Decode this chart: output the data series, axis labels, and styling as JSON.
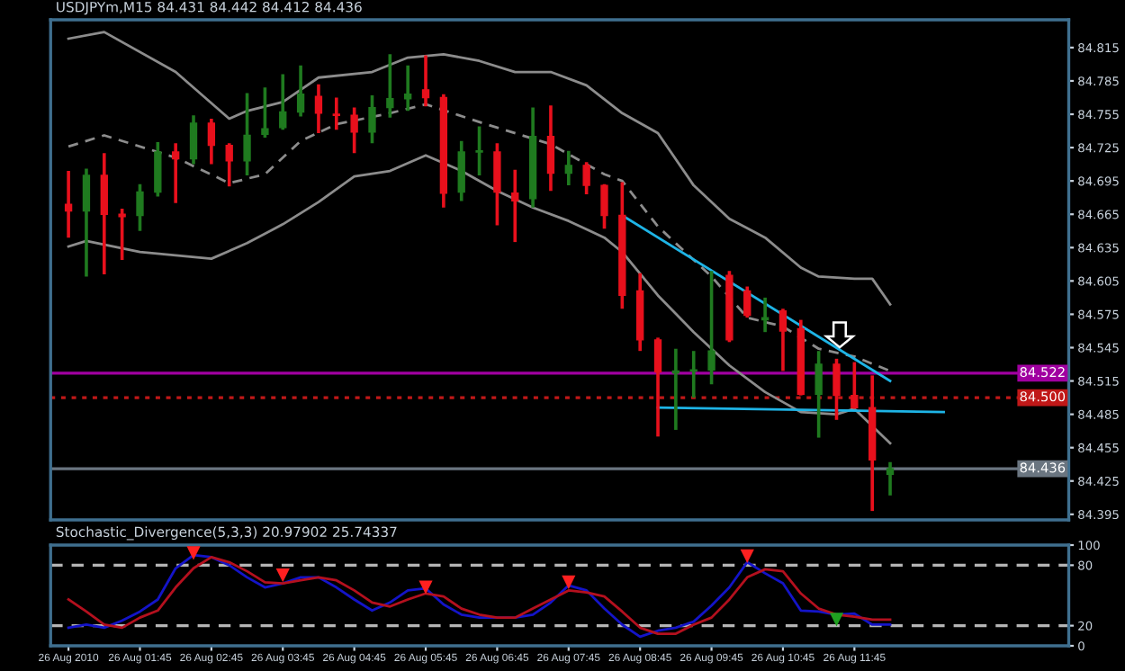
{
  "chart_data": [
    {
      "type": "candlestick",
      "title": "USDJPYm,M15 84.431 84.442 84.412 84.436",
      "x": [
        "2010-08-26T00:45",
        "2010-08-26T01:00",
        "2010-08-26T01:15",
        "2010-08-26T01:30",
        "2010-08-26T01:45",
        "2010-08-26T02:00",
        "2010-08-26T02:15",
        "2010-08-26T02:30",
        "2010-08-26T02:45",
        "2010-08-26T03:00",
        "2010-08-26T03:15",
        "2010-08-26T03:30",
        "2010-08-26T03:45",
        "2010-08-26T04:00",
        "2010-08-26T04:15",
        "2010-08-26T04:30",
        "2010-08-26T04:45",
        "2010-08-26T05:00",
        "2010-08-26T05:15",
        "2010-08-26T05:30",
        "2010-08-26T05:45",
        "2010-08-26T06:00",
        "2010-08-26T06:15",
        "2010-08-26T06:30",
        "2010-08-26T06:45",
        "2010-08-26T07:00",
        "2010-08-26T07:15",
        "2010-08-26T07:30",
        "2010-08-26T07:45",
        "2010-08-26T08:00",
        "2010-08-26T08:15",
        "2010-08-26T08:30",
        "2010-08-26T08:45",
        "2010-08-26T09:00",
        "2010-08-26T09:15",
        "2010-08-26T09:30",
        "2010-08-26T09:45",
        "2010-08-26T10:00",
        "2010-08-26T10:15",
        "2010-08-26T10:30",
        "2010-08-26T10:45",
        "2010-08-26T11:00",
        "2010-08-26T11:15",
        "2010-08-26T11:30",
        "2010-08-26T11:45",
        "2010-08-26T12:00",
        "2010-08-26T12:15"
      ],
      "ohlc": [
        [
          84.674,
          84.704,
          84.644,
          84.668
        ],
        [
          84.668,
          84.706,
          84.609,
          84.7
        ],
        [
          84.7,
          84.72,
          84.611,
          84.665
        ],
        [
          84.665,
          84.67,
          84.624,
          84.663
        ],
        [
          84.664,
          84.692,
          84.65,
          84.685
        ],
        [
          84.685,
          84.73,
          84.681,
          84.721
        ],
        [
          84.721,
          84.729,
          84.675,
          84.715
        ],
        [
          84.715,
          84.754,
          84.71,
          84.747
        ],
        [
          84.747,
          84.751,
          84.71,
          84.727
        ],
        [
          84.727,
          84.729,
          84.69,
          84.713
        ],
        [
          84.713,
          84.774,
          84.7,
          84.736
        ],
        [
          84.737,
          84.779,
          84.734,
          84.742
        ],
        [
          84.743,
          84.791,
          84.741,
          84.757
        ],
        [
          84.757,
          84.799,
          84.753,
          84.773
        ],
        [
          84.771,
          84.782,
          84.738,
          84.756
        ],
        [
          84.755,
          84.77,
          84.741,
          84.754
        ],
        [
          84.754,
          84.761,
          84.72,
          84.739
        ],
        [
          84.739,
          84.772,
          84.729,
          84.761
        ],
        [
          84.761,
          84.809,
          84.752,
          84.769
        ],
        [
          84.769,
          84.799,
          84.758,
          84.773
        ],
        [
          84.777,
          84.808,
          84.762,
          84.77
        ],
        [
          84.77,
          84.773,
          84.671,
          84.684
        ],
        [
          84.685,
          84.731,
          84.677,
          84.721
        ],
        [
          84.721,
          84.744,
          84.7,
          84.722
        ],
        [
          84.721,
          84.729,
          84.655,
          84.685
        ],
        [
          84.684,
          84.705,
          84.64,
          84.677
        ],
        [
          84.679,
          84.761,
          84.671,
          84.735
        ],
        [
          84.735,
          84.763,
          84.686,
          84.702
        ],
        [
          84.702,
          84.722,
          84.691,
          84.709
        ],
        [
          84.709,
          84.712,
          84.683,
          84.691
        ],
        [
          84.691,
          84.692,
          84.652,
          84.664
        ],
        [
          84.664,
          84.694,
          84.58,
          84.592
        ],
        [
          84.596,
          84.612,
          84.542,
          84.552
        ],
        [
          84.552,
          84.554,
          84.465,
          84.523
        ],
        [
          84.522,
          84.544,
          84.471,
          84.524
        ],
        [
          84.524,
          84.542,
          84.5,
          84.525
        ],
        [
          84.525,
          84.614,
          84.512,
          84.542
        ],
        [
          84.61,
          84.614,
          84.55,
          84.552
        ],
        [
          84.596,
          84.6,
          84.572,
          84.574
        ],
        [
          84.57,
          84.59,
          84.559,
          84.572
        ],
        [
          84.578,
          84.58,
          84.524,
          84.56
        ],
        [
          84.562,
          84.57,
          84.502,
          84.503
        ],
        [
          84.503,
          84.542,
          84.464,
          84.53
        ],
        [
          84.53,
          84.535,
          84.48,
          84.502
        ],
        [
          84.502,
          84.532,
          84.49,
          84.491
        ],
        [
          84.491,
          84.52,
          84.398,
          84.444
        ],
        [
          84.431,
          84.442,
          84.412,
          84.436
        ]
      ],
      "colors": [
        "#e8101c",
        "#1f7a1f",
        "#e8101c",
        "#e8101c",
        "#1f7a1f",
        "#1f7a1f",
        "#e8101c",
        "#1f7a1f",
        "#e8101c",
        "#e8101c",
        "#1f7a1f",
        "#1f7a1f",
        "#1f7a1f",
        "#1f7a1f",
        "#e8101c",
        "#e8101c",
        "#e8101c",
        "#1f7a1f",
        "#1f7a1f",
        "#1f7a1f",
        "#e8101c",
        "#e8101c",
        "#1f7a1f",
        "#1f7a1f",
        "#e8101c",
        "#e8101c",
        "#1f7a1f",
        "#e8101c",
        "#1f7a1f",
        "#e8101c",
        "#e8101c",
        "#e8101c",
        "#e8101c",
        "#e8101c",
        "#1f7a1f",
        "#1f7a1f",
        "#1f7a1f",
        "#e8101c",
        "#e8101c",
        "#1f7a1f",
        "#e8101c",
        "#e8101c",
        "#1f7a1f",
        "#e8101c",
        "#e8101c",
        "#e8101c",
        "#1f7a1f"
      ],
      "series": [
        {
          "type": "line",
          "color": "#8c8c8c",
          "x": [
            "2010-08-26T00:45",
            "2010-08-26T01:15",
            "2010-08-26T02:15",
            "2010-08-26T03:00",
            "2010-08-26T03:15",
            "2010-08-26T03:45",
            "2010-08-26T04:15",
            "2010-08-26T05:00",
            "2010-08-26T05:30",
            "2010-08-26T06:00",
            "2010-08-26T06:30",
            "2010-08-26T07:00",
            "2010-08-26T07:30",
            "2010-08-26T08:00",
            "2010-08-26T08:30",
            "2010-08-26T09:00",
            "2010-08-26T09:30",
            "2010-08-26T10:00",
            "2010-08-26T10:30",
            "2010-08-26T11:00",
            "2010-08-26T11:15",
            "2010-08-26T11:45",
            "2010-08-26T12:00",
            "2010-08-26T12:15"
          ],
          "values": [
            84.823,
            84.829,
            84.793,
            84.751,
            84.758,
            84.766,
            84.788,
            84.793,
            84.806,
            84.809,
            84.803,
            84.793,
            84.793,
            84.781,
            84.756,
            84.738,
            84.691,
            84.661,
            84.644,
            84.617,
            84.609,
            84.607,
            84.607,
            84.584
          ]
        },
        {
          "type": "line",
          "color": "#8c8c8c",
          "line_style": "dashed",
          "x": [
            "2010-08-26T00:45",
            "2010-08-26T01:15",
            "2010-08-26T02:15",
            "2010-08-26T03:00",
            "2010-08-26T03:30",
            "2010-08-26T04:00",
            "2010-08-26T04:30",
            "2010-08-26T05:15",
            "2010-08-26T05:45",
            "2010-08-26T06:30",
            "2010-08-26T07:30",
            "2010-08-26T08:15",
            "2010-08-26T08:30",
            "2010-08-26T09:00",
            "2010-08-26T09:45",
            "2010-08-26T10:15",
            "2010-08-26T10:45",
            "2010-08-26T11:15",
            "2010-08-26T11:45",
            "2010-08-26T12:15"
          ],
          "values": [
            84.726,
            84.736,
            84.716,
            84.693,
            84.701,
            84.731,
            84.746,
            84.756,
            84.764,
            84.748,
            84.728,
            84.701,
            84.695,
            84.654,
            84.609,
            84.572,
            84.564,
            84.544,
            84.537,
            84.524
          ]
        },
        {
          "type": "line",
          "color": "#8c8c8c",
          "x": [
            "2010-08-26T00:45",
            "2010-08-26T01:00",
            "2010-08-26T01:45",
            "2010-08-26T02:45",
            "2010-08-26T03:15",
            "2010-08-26T03:45",
            "2010-08-26T04:15",
            "2010-08-26T04:45",
            "2010-08-26T05:15",
            "2010-08-26T05:45",
            "2010-08-26T06:15",
            "2010-08-26T06:45",
            "2010-08-26T07:15",
            "2010-08-26T07:45",
            "2010-08-26T08:15",
            "2010-08-26T08:30",
            "2010-08-26T09:00",
            "2010-08-26T09:30",
            "2010-08-26T10:00",
            "2010-08-26T10:30",
            "2010-08-26T11:00",
            "2010-08-26T11:30",
            "2010-08-26T11:45",
            "2010-08-26T12:15"
          ],
          "values": [
            84.636,
            84.641,
            84.631,
            84.625,
            84.639,
            84.656,
            84.676,
            84.699,
            84.704,
            84.718,
            84.704,
            84.686,
            84.671,
            84.659,
            84.644,
            84.631,
            84.592,
            84.559,
            84.529,
            84.505,
            84.487,
            84.485,
            84.49,
            84.459
          ]
        },
        {
          "type": "line",
          "color": "#1eb4e6",
          "x": [
            "2010-08-26T08:30",
            "2010-08-26T12:15"
          ],
          "values": [
            84.664,
            84.515
          ]
        },
        {
          "type": "line",
          "color": "#1eb4e6",
          "x": [
            "2010-08-26T09:00",
            "2010-08-26T13:00"
          ],
          "values": [
            84.491,
            84.487
          ]
        }
      ],
      "ref_lines": [
        {
          "axis": "y",
          "value": 84.522,
          "label": "84.522",
          "color": "#a000a0"
        },
        {
          "axis": "y",
          "value": 84.5,
          "label": "84.500",
          "color": "#c01818",
          "line_style": "dotted"
        },
        {
          "axis": "y",
          "value": 84.436,
          "label": "84.436",
          "color": "#6a7580"
        }
      ],
      "xlim": [
        "2010-08-26T00:30",
        "2010-08-26T14:45"
      ],
      "ylim": [
        84.39,
        84.84
      ],
      "yticks": [
        84.395,
        84.425,
        84.455,
        84.485,
        84.515,
        84.545,
        84.575,
        84.605,
        84.635,
        84.665,
        84.695,
        84.725,
        84.755,
        84.785,
        84.815
      ],
      "tick_labels": "y"
    },
    {
      "type": "line",
      "title": "Stochastic_Divergence(5,3,3) 20.97902 25.74337",
      "x": [
        "2010-08-26T00:45",
        "2010-08-26T01:00",
        "2010-08-26T01:15",
        "2010-08-26T01:30",
        "2010-08-26T01:45",
        "2010-08-26T02:00",
        "2010-08-26T02:15",
        "2010-08-26T02:30",
        "2010-08-26T02:45",
        "2010-08-26T03:00",
        "2010-08-26T03:15",
        "2010-08-26T03:30",
        "2010-08-26T03:45",
        "2010-08-26T04:00",
        "2010-08-26T04:15",
        "2010-08-26T04:30",
        "2010-08-26T04:45",
        "2010-08-26T05:00",
        "2010-08-26T05:15",
        "2010-08-26T05:30",
        "2010-08-26T05:45",
        "2010-08-26T06:00",
        "2010-08-26T06:15",
        "2010-08-26T06:30",
        "2010-08-26T06:45",
        "2010-08-26T07:00",
        "2010-08-26T07:15",
        "2010-08-26T07:30",
        "2010-08-26T07:45",
        "2010-08-26T08:00",
        "2010-08-26T08:15",
        "2010-08-26T08:30",
        "2010-08-26T08:45",
        "2010-08-26T09:00",
        "2010-08-26T09:15",
        "2010-08-26T09:30",
        "2010-08-26T09:45",
        "2010-08-26T10:00",
        "2010-08-26T10:15",
        "2010-08-26T10:30",
        "2010-08-26T10:45",
        "2010-08-26T11:00",
        "2010-08-26T11:15",
        "2010-08-26T11:30",
        "2010-08-26T11:45",
        "2010-08-26T12:00",
        "2010-08-26T12:15"
      ],
      "series": [
        {
          "color": "#1414c8",
          "values": [
            18,
            21,
            18,
            25,
            34,
            46,
            77,
            90,
            88,
            80,
            68,
            58,
            62,
            68,
            68,
            58,
            46,
            35,
            43,
            55,
            57,
            41,
            31,
            28,
            28,
            28,
            31,
            43,
            60,
            55,
            37,
            21,
            9,
            15,
            18,
            24,
            40,
            58,
            83,
            72,
            62,
            35,
            34,
            31,
            32,
            21,
            21
          ]
        },
        {
          "color": "#b4101e",
          "values": [
            46,
            34,
            21,
            18,
            28,
            35,
            58,
            77,
            88,
            83,
            74,
            63,
            62,
            65,
            68,
            65,
            55,
            43,
            39,
            46,
            52,
            49,
            37,
            31,
            28,
            28,
            37,
            46,
            55,
            53,
            49,
            34,
            18,
            12,
            12,
            21,
            28,
            46,
            68,
            76,
            74,
            52,
            37,
            31,
            29,
            26,
            26
          ]
        },
        {
          "type": "scatter",
          "color": "#ff2020",
          "marker": "triangle",
          "x": [
            "2010-08-26T02:30",
            "2010-08-26T03:45",
            "2010-08-26T05:45",
            "2010-08-26T07:45",
            "2010-08-26T10:15"
          ],
          "values": [
            92,
            70,
            58,
            63,
            89
          ]
        },
        {
          "type": "scatter",
          "color": "#20a020",
          "marker": "triangle",
          "x": [
            "2010-08-26T11:30"
          ],
          "values": [
            26
          ]
        }
      ],
      "ref_lines": [
        {
          "axis": "y",
          "value": 80,
          "color": "#b4b4b4",
          "line_style": "dashed"
        },
        {
          "axis": "y",
          "value": 20,
          "color": "#b4b4b4",
          "line_style": "dashed"
        }
      ],
      "xlim": [
        "2010-08-26T00:30",
        "2010-08-26T14:45"
      ],
      "ylim": [
        0,
        100
      ],
      "yticks": [
        0,
        20,
        80,
        100
      ],
      "xticks": [
        {
          "value": "2010-08-26T00:45",
          "label": "26 Aug 2010"
        },
        {
          "value": "2010-08-26T01:45",
          "label": "26 Aug 01:45"
        },
        {
          "value": "2010-08-26T02:45",
          "label": "26 Aug 02:45"
        },
        {
          "value": "2010-08-26T03:45",
          "label": "26 Aug 03:45"
        },
        {
          "value": "2010-08-26T04:45",
          "label": "26 Aug 04:45"
        },
        {
          "value": "2010-08-26T05:45",
          "label": "26 Aug 05:45"
        },
        {
          "value": "2010-08-26T06:45",
          "label": "26 Aug 06:45"
        },
        {
          "value": "2010-08-26T07:45",
          "label": "26 Aug 07:45"
        },
        {
          "value": "2010-08-26T08:45",
          "label": "26 Aug 08:45"
        },
        {
          "value": "2010-08-26T09:45",
          "label": "26 Aug 09:45"
        },
        {
          "value": "2010-08-26T10:45",
          "label": "26 Aug 10:45"
        },
        {
          "value": "2010-08-26T11:45",
          "label": "26 Aug 11:45"
        }
      ]
    }
  ]
}
